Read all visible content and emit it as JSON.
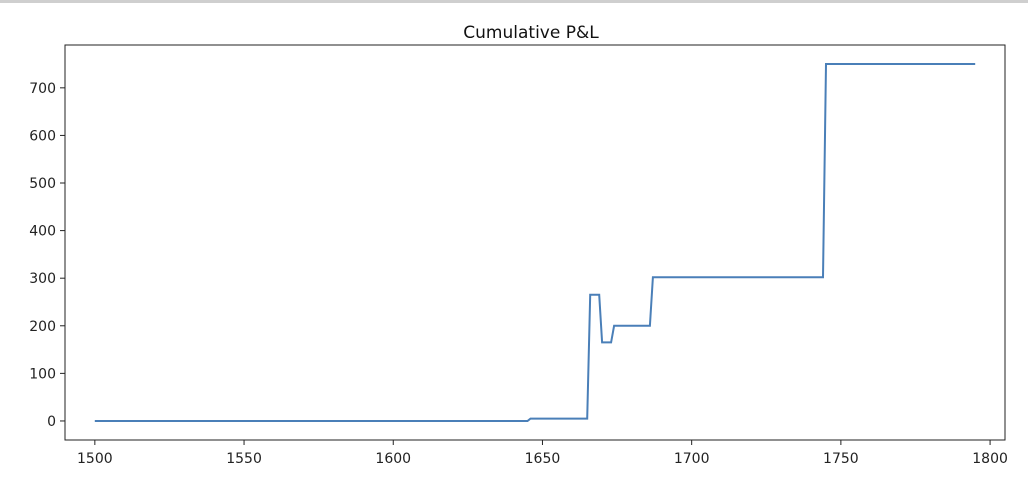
{
  "chart_data": {
    "type": "line",
    "title": "Cumulative P&L",
    "xlabel": "",
    "ylabel": "",
    "xlim": [
      1490,
      1805
    ],
    "ylim": [
      -40,
      790
    ],
    "x_ticks": [
      1500,
      1550,
      1600,
      1650,
      1700,
      1750,
      1800
    ],
    "x_tick_labels": [
      "1500",
      "1550",
      "1600",
      "1650",
      "1700",
      "1750",
      "1800"
    ],
    "y_ticks": [
      0,
      100,
      200,
      300,
      400,
      500,
      600,
      700
    ],
    "y_tick_labels": [
      "0",
      "100",
      "200",
      "300",
      "400",
      "500",
      "600",
      "700"
    ],
    "grid": false,
    "series": [
      {
        "color": "#4a7fb8",
        "points": [
          [
            1500,
            0
          ],
          [
            1645,
            0
          ],
          [
            1646,
            5
          ],
          [
            1665,
            5
          ],
          [
            1666,
            265
          ],
          [
            1669,
            265
          ],
          [
            1670,
            165
          ],
          [
            1673,
            165
          ],
          [
            1674,
            200
          ],
          [
            1686,
            200
          ],
          [
            1687,
            302
          ],
          [
            1744,
            302
          ],
          [
            1745,
            750
          ],
          [
            1795,
            750
          ]
        ]
      }
    ]
  }
}
